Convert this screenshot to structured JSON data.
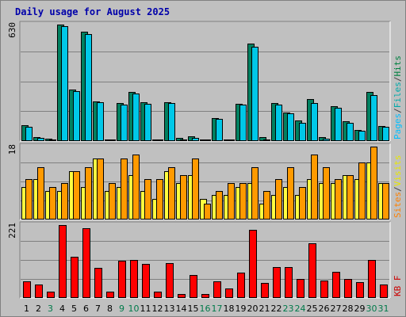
{
  "title": "Daily usage for August 2025",
  "chart_data": [
    {
      "type": "bar",
      "panel": "top",
      "ymax_label": "630",
      "ylim": [
        0,
        630
      ],
      "legend": [
        {
          "text": "Pages",
          "color": "#00bfff"
        },
        {
          "text": "/",
          "color": "#404040"
        },
        {
          "text": "Files",
          "color": "#00aaaa"
        },
        {
          "text": "/",
          "color": "#404040"
        },
        {
          "text": "Hits",
          "color": "#008040"
        }
      ],
      "categories": [
        "1",
        "2",
        "3",
        "4",
        "5",
        "6",
        "7",
        "8",
        "9",
        "10",
        "11",
        "12",
        "13",
        "14",
        "15",
        "16",
        "17",
        "18",
        "19",
        "20",
        "21",
        "22",
        "23",
        "24",
        "25",
        "26",
        "27",
        "28",
        "29",
        "30",
        "31"
      ],
      "series": [
        {
          "name": "Hits",
          "color": "#008060",
          "values": [
            85,
            22,
            12,
            630,
            280,
            590,
            215,
            10,
            205,
            265,
            210,
            10,
            210,
            15,
            25,
            8,
            125,
            10,
            200,
            525,
            20,
            205,
            155,
            110,
            225,
            20,
            190,
            105,
            60,
            265,
            80
          ]
        },
        {
          "name": "Files",
          "color": "#00c8e8",
          "values": [
            75,
            15,
            8,
            620,
            270,
            580,
            210,
            8,
            195,
            255,
            200,
            5,
            205,
            10,
            18,
            5,
            120,
            8,
            195,
            510,
            10,
            195,
            150,
            100,
            205,
            12,
            180,
            100,
            55,
            250,
            75
          ]
        }
      ]
    },
    {
      "type": "bar",
      "panel": "middle",
      "ymax_label": "18",
      "ylim": [
        0,
        18
      ],
      "legend": [
        {
          "text": "Sites",
          "color": "#ff8000"
        },
        {
          "text": "/",
          "color": "#404040"
        },
        {
          "text": "Visits",
          "color": "#e8e800"
        }
      ],
      "categories": [
        "1",
        "2",
        "3",
        "4",
        "5",
        "6",
        "7",
        "8",
        "9",
        "10",
        "11",
        "12",
        "13",
        "14",
        "15",
        "16",
        "17",
        "18",
        "19",
        "20",
        "21",
        "22",
        "23",
        "24",
        "25",
        "26",
        "27",
        "28",
        "29",
        "30",
        "31"
      ],
      "series": [
        {
          "name": "Visits",
          "color": "#ffff40",
          "values": [
            8,
            10,
            7,
            7,
            12,
            8,
            15,
            7,
            8,
            11,
            7,
            5,
            12,
            9,
            11,
            5,
            6,
            6,
            8,
            9,
            4,
            6,
            8,
            6,
            10,
            9,
            9,
            11,
            10,
            14,
            9
          ]
        },
        {
          "name": "Sites",
          "color": "#ff9a00",
          "values": [
            10,
            13,
            8,
            9,
            12,
            13,
            15,
            9,
            15,
            16,
            10,
            10,
            13,
            11,
            15,
            4,
            7,
            9,
            9,
            13,
            7,
            10,
            13,
            8,
            16,
            13,
            10,
            11,
            14,
            18,
            9
          ]
        }
      ]
    },
    {
      "type": "bar",
      "panel": "bottom",
      "ymax_label": "221",
      "ylim": [
        0,
        221
      ],
      "legend": [
        {
          "text": "KB F",
          "color": "#cc0000"
        }
      ],
      "categories": [
        "1",
        "2",
        "3",
        "4",
        "5",
        "6",
        "7",
        "8",
        "9",
        "10",
        "11",
        "12",
        "13",
        "14",
        "15",
        "16",
        "17",
        "18",
        "19",
        "20",
        "21",
        "22",
        "23",
        "24",
        "25",
        "26",
        "27",
        "28",
        "29",
        "30",
        "31"
      ],
      "series": [
        {
          "name": "KB F",
          "color": "#ff0000",
          "values": [
            50,
            40,
            20,
            221,
            124,
            212,
            91,
            20,
            113,
            116,
            103,
            20,
            106,
            13,
            70,
            13,
            50,
            28,
            77,
            206,
            46,
            94,
            94,
            57,
            166,
            53,
            80,
            58,
            48,
            115,
            40
          ]
        }
      ]
    }
  ],
  "days": [
    {
      "label": "1",
      "weekend": false
    },
    {
      "label": "2",
      "weekend": false
    },
    {
      "label": "3",
      "weekend": true
    },
    {
      "label": "4",
      "weekend": false
    },
    {
      "label": "5",
      "weekend": false
    },
    {
      "label": "6",
      "weekend": false
    },
    {
      "label": "7",
      "weekend": false
    },
    {
      "label": "8",
      "weekend": false
    },
    {
      "label": "9",
      "weekend": true
    },
    {
      "label": "10",
      "weekend": true
    },
    {
      "label": "11",
      "weekend": false
    },
    {
      "label": "12",
      "weekend": false
    },
    {
      "label": "13",
      "weekend": false
    },
    {
      "label": "14",
      "weekend": false
    },
    {
      "label": "15",
      "weekend": false
    },
    {
      "label": "16",
      "weekend": true
    },
    {
      "label": "17",
      "weekend": true
    },
    {
      "label": "18",
      "weekend": false
    },
    {
      "label": "19",
      "weekend": false
    },
    {
      "label": "20",
      "weekend": false
    },
    {
      "label": "21",
      "weekend": false
    },
    {
      "label": "22",
      "weekend": false
    },
    {
      "label": "23",
      "weekend": true
    },
    {
      "label": "24",
      "weekend": true
    },
    {
      "label": "25",
      "weekend": false
    },
    {
      "label": "26",
      "weekend": false
    },
    {
      "label": "27",
      "weekend": false
    },
    {
      "label": "28",
      "weekend": false
    },
    {
      "label": "29",
      "weekend": false
    },
    {
      "label": "30",
      "weekend": true
    },
    {
      "label": "31",
      "weekend": true
    }
  ]
}
